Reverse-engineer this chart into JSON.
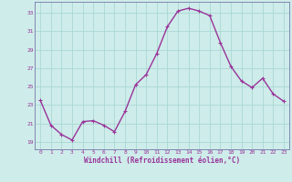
{
  "x": [
    0,
    1,
    2,
    3,
    4,
    5,
    6,
    7,
    8,
    9,
    10,
    11,
    12,
    13,
    14,
    15,
    16,
    17,
    18,
    19,
    20,
    21,
    22,
    23
  ],
  "y": [
    23.5,
    20.8,
    19.8,
    19.2,
    21.2,
    21.3,
    20.8,
    20.1,
    22.3,
    25.2,
    26.3,
    28.6,
    31.5,
    33.2,
    33.5,
    33.2,
    32.7,
    29.8,
    27.2,
    25.6,
    24.9,
    25.9,
    24.2,
    23.4
  ],
  "line_color": "#993399",
  "marker": "+",
  "marker_size": 3,
  "linewidth": 1.0,
  "bg_color": "#ceecea",
  "grid_color": "#a8d8d4",
  "axis_color": "#7a7a9a",
  "tick_color": "#993399",
  "xlabel": "Windchill (Refroidissement éolien,°C)",
  "xlabel_fontsize": 5.5,
  "ylabel_ticks": [
    19,
    21,
    23,
    25,
    27,
    29,
    31,
    33
  ],
  "xlim": [
    -0.5,
    23.5
  ],
  "ylim": [
    18.2,
    34.2
  ],
  "xticks": [
    0,
    1,
    2,
    3,
    4,
    5,
    6,
    7,
    8,
    9,
    10,
    11,
    12,
    13,
    14,
    15,
    16,
    17,
    18,
    19,
    20,
    21,
    22,
    23
  ]
}
